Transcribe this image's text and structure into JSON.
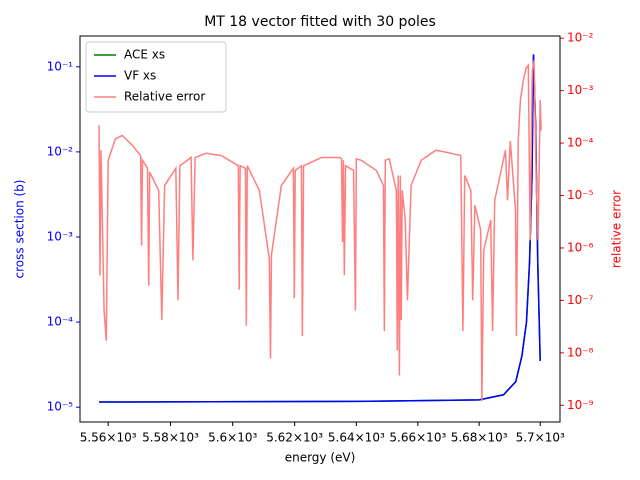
{
  "chart_data": {
    "type": "line",
    "title": "MT 18 vector fitted with 30 poles",
    "x_label": "energy (eV)",
    "y_label": "cross section (b)",
    "y2_label": "relative error",
    "xscale": "log",
    "yscale": "log",
    "y2scale": "log",
    "xlim": [
      5551,
      5706.5
    ],
    "ylim": [
      6.7e-06,
      0.23
    ],
    "y2lim": [
      4.8e-10,
      0.011
    ],
    "xticks": [
      {
        "value": 5560,
        "label": "5.56×10³"
      },
      {
        "value": 5580,
        "label": "5.58×10³"
      },
      {
        "value": 5600,
        "label": "5.6×10³"
      },
      {
        "value": 5620,
        "label": "5.62×10³"
      },
      {
        "value": 5640,
        "label": "5.64×10³"
      },
      {
        "value": 5660,
        "label": "5.66×10³"
      },
      {
        "value": 5680,
        "label": "5.68×10³"
      },
      {
        "value": 5700,
        "label": "5.7×10³"
      }
    ],
    "yticks": [
      {
        "value": 1e-05,
        "label": "10⁻⁵"
      },
      {
        "value": 0.0001,
        "label": "10⁻⁴"
      },
      {
        "value": 0.001,
        "label": "10⁻³"
      },
      {
        "value": 0.01,
        "label": "10⁻²"
      },
      {
        "value": 0.1,
        "label": "10⁻¹"
      }
    ],
    "y2ticks": [
      {
        "value": 1e-09,
        "label": "10⁻⁹"
      },
      {
        "value": 1e-08,
        "label": "10⁻⁸"
      },
      {
        "value": 1e-07,
        "label": "10⁻⁷"
      },
      {
        "value": 1e-06,
        "label": "10⁻⁶"
      },
      {
        "value": 1e-05,
        "label": "10⁻⁵"
      },
      {
        "value": 0.0001,
        "label": "10⁻⁴"
      },
      {
        "value": 0.001,
        "label": "10⁻³"
      },
      {
        "value": 0.01,
        "label": "10⁻²"
      }
    ],
    "y_color": "#0000ff",
    "y2_color": "#ff0000",
    "legend": "upper left",
    "series": [
      {
        "name": "ACE xs",
        "color": "#008000",
        "x": [
          5557.1,
          5640,
          5680,
          5688,
          5692,
          5694,
          5695.5,
          5696.5,
          5697.3,
          5697.8,
          5698.5,
          5699.2,
          5700
        ],
        "values": [
          1.15e-05,
          1.17e-05,
          1.22e-05,
          1.4e-05,
          2e-05,
          4e-05,
          0.0001,
          0.0005,
          0.005,
          0.14,
          0.02,
          0.0005,
          3.5e-05
        ]
      },
      {
        "name": "VF xs",
        "color": "#0000ff",
        "x": [
          5557.1,
          5640,
          5680,
          5688,
          5692,
          5694,
          5695.5,
          5696.5,
          5697.3,
          5697.8,
          5698.5,
          5699.2,
          5700
        ],
        "values": [
          1.15e-05,
          1.17e-05,
          1.22e-05,
          1.4e-05,
          2e-05,
          4e-05,
          0.0001,
          0.0005,
          0.005,
          0.14,
          0.02,
          0.0005,
          3.5e-05
        ]
      },
      {
        "name": "Relative error",
        "color": "#ff7f7f",
        "axis": "y2",
        "x": [
          5557.1,
          5557.4,
          5557.7,
          5558.7,
          5559.4,
          5560.0,
          5562.3,
          5564.5,
          5567.8,
          5570.4,
          5570.7,
          5571.0,
          5572.6,
          5573.0,
          5573.3,
          5576.2,
          5577.2,
          5578.1,
          5581.7,
          5582.4,
          5583.0,
          5586.6,
          5587.2,
          5587.9,
          5591.4,
          5596.3,
          5601.8,
          5602.1,
          5602.4,
          5604.1,
          5604.4,
          5604.7,
          5608.6,
          5611.8,
          5612.2,
          5612.5,
          5615.7,
          5619.6,
          5619.9,
          5620.2,
          5622.2,
          5622.5,
          5622.9,
          5628.7,
          5634.5,
          5635.2,
          5635.5,
          5635.8,
          5636.1,
          5636.5,
          5639.1,
          5639.7,
          5640.0,
          5641.6,
          5646.5,
          5648.8,
          5649.1,
          5649.4,
          5650.7,
          5653.0,
          5653.3,
          5653.6,
          5654.0,
          5654.3,
          5654.6,
          5654.9,
          5655.9,
          5656.6,
          5657.8,
          5661.1,
          5665.9,
          5669.2,
          5674.0,
          5674.7,
          5675.3,
          5677.3,
          5677.9,
          5678.6,
          5680.5,
          5680.9,
          5681.5,
          5683.8,
          5684.4,
          5685.1,
          5688.6,
          5689.3,
          5690.2,
          5691.9,
          5692.2,
          5692.8,
          5693.5,
          5694.5,
          5695.4,
          5696.1,
          5696.7,
          5697.4,
          5698.0,
          5698.7,
          5699.3,
          5700.0,
          5700.3
        ],
        "values": [
          0.00022,
          3e-07,
          7.3e-05,
          6.4e-08,
          1.7e-08,
          4.7e-05,
          0.00012,
          0.00014,
          9e-05,
          5.8e-05,
          1.1e-06,
          4.7e-05,
          3.3e-05,
          1.9e-07,
          2.8e-05,
          1.25e-05,
          4.2e-08,
          1.55e-05,
          3.3e-05,
          1e-07,
          3.7e-05,
          5.3e-05,
          5.8e-07,
          5.3e-05,
          6.4e-05,
          5.8e-05,
          3.7e-05,
          1.6e-07,
          3.7e-05,
          3.3e-05,
          3.3e-08,
          3.7e-05,
          1.25e-05,
          6.3e-07,
          7.8e-09,
          7.3e-07,
          1.55e-05,
          3.3e-05,
          1.1e-07,
          3e-05,
          3.7e-05,
          2.1e-08,
          3.7e-05,
          5.3e-05,
          5.3e-05,
          5e-05,
          1.3e-06,
          4.7e-05,
          3e-07,
          3.7e-05,
          3e-05,
          6.4e-08,
          5e-05,
          4.7e-05,
          3e-05,
          1.55e-05,
          2.6e-08,
          4.7e-05,
          5e-05,
          1.25e-05,
          1.1e-08,
          2.4e-05,
          3.7e-09,
          2.4e-05,
          4.2e-08,
          1.25e-05,
          3.4e-06,
          1e-07,
          1.55e-05,
          4.7e-05,
          7.3e-05,
          6.7e-05,
          5.8e-05,
          2.6e-08,
          2.4e-05,
          1.25e-05,
          1e-07,
          6.5e-06,
          2.2e-06,
          1.2e-09,
          9e-07,
          3.4e-06,
          2.6e-08,
          8.1e-06,
          7.3e-05,
          8.1e-06,
          0.00011,
          5.3e-06,
          2.1e-08,
          0.00011,
          0.00066,
          0.0016,
          0.0027,
          0.00305,
          1.4e-06,
          0.0024,
          0.0038,
          1.9e-05,
          1.4e-06,
          0.00066,
          0.000175
        ]
      }
    ]
  }
}
